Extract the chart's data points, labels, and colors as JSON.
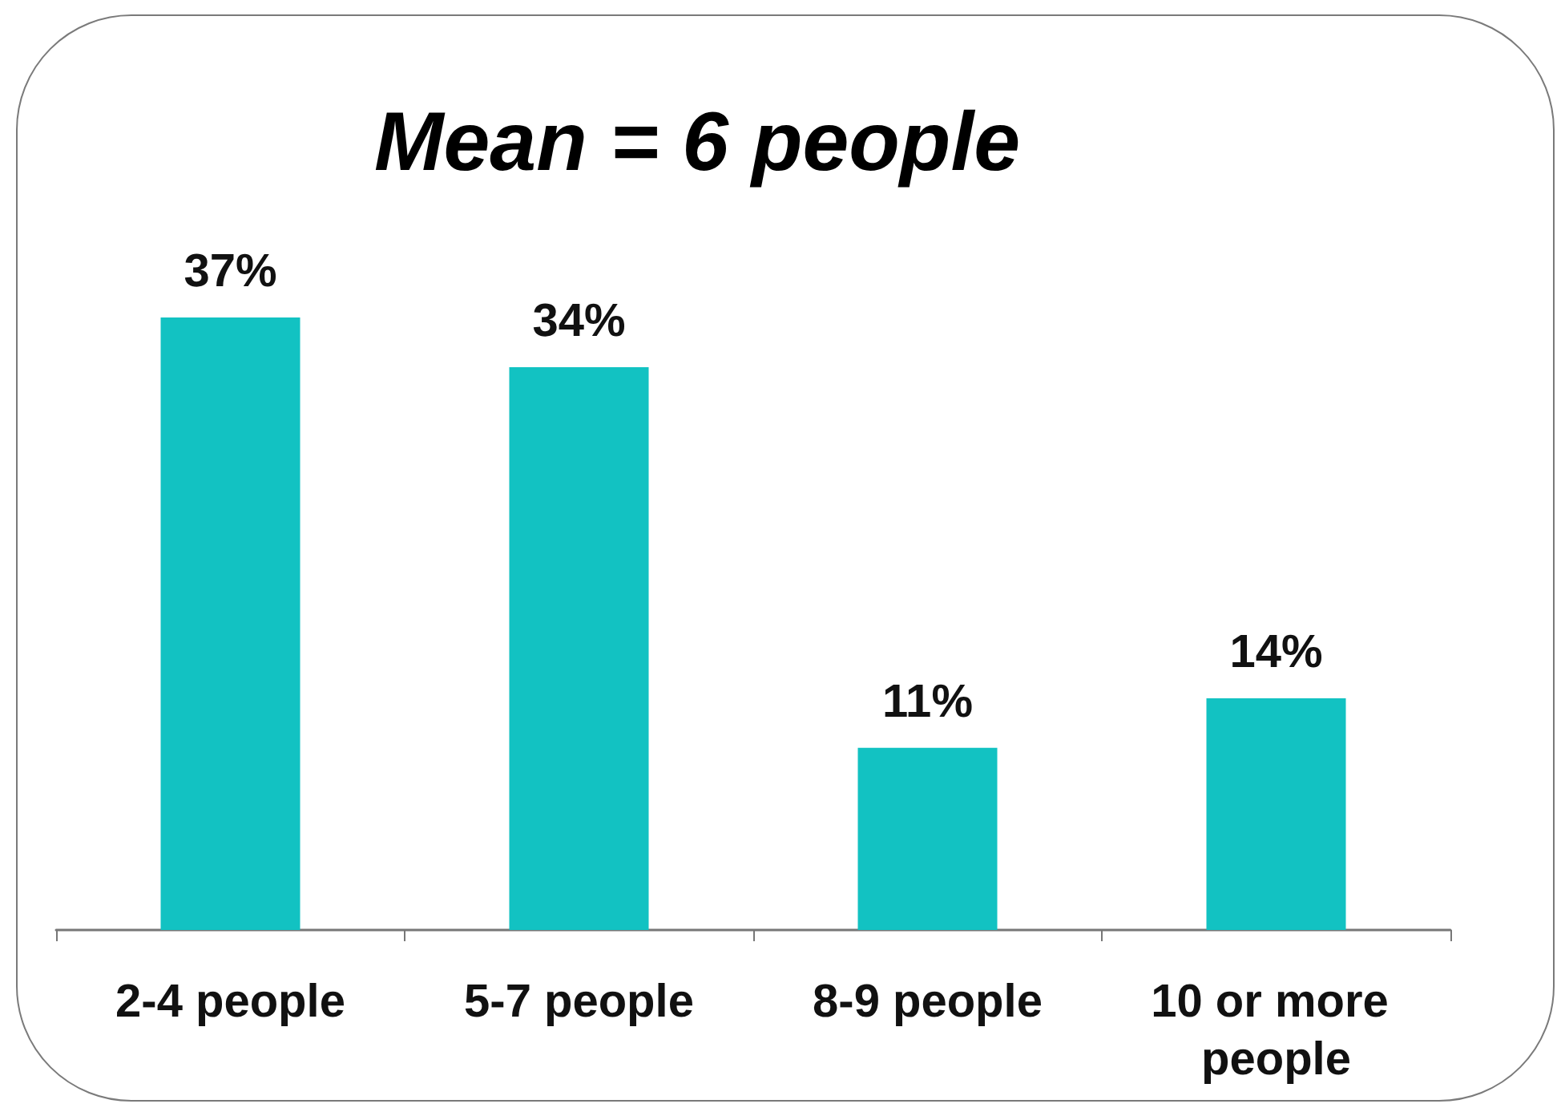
{
  "chart_data": {
    "type": "bar",
    "title": "Mean = 6 people",
    "categories": [
      "2-4 people",
      "5-7 people",
      "8-9 people",
      "10 or more people"
    ],
    "values": [
      37,
      34,
      11,
      14
    ],
    "color": "#12c2c2",
    "value_labels": [
      "37%",
      "34%",
      "11%",
      "14%"
    ]
  }
}
